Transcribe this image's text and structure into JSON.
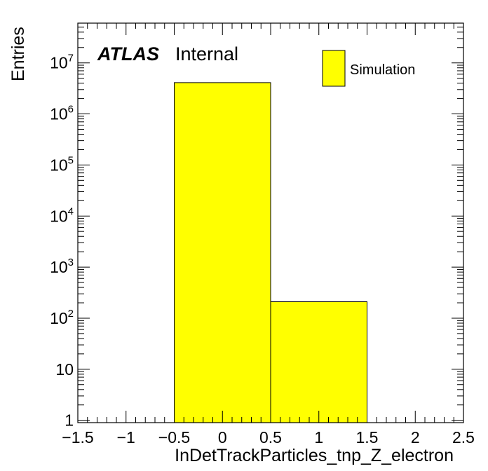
{
  "chart_data": {
    "type": "bar",
    "title": "",
    "xlabel": "InDetTrackParticles_tnp_Z_electron",
    "ylabel": "Entries",
    "xlim": [
      -1.5,
      2.5
    ],
    "ylim": [
      0.9,
      60000000
    ],
    "ylog": true,
    "x_ticks": [
      "−1.5",
      "−1",
      "−0.5",
      "0",
      "0.5",
      "1",
      "1.5",
      "2",
      "2.5"
    ],
    "y_ticks": [
      {
        "base": "1",
        "exp": ""
      },
      {
        "base": "10",
        "exp": ""
      },
      {
        "base": "10",
        "exp": "2"
      },
      {
        "base": "10",
        "exp": "3"
      },
      {
        "base": "10",
        "exp": "4"
      },
      {
        "base": "10",
        "exp": "5"
      },
      {
        "base": "10",
        "exp": "6"
      },
      {
        "base": "10",
        "exp": "7"
      }
    ],
    "bins": [
      {
        "low": -0.5,
        "high": 0.5,
        "value": 4100000
      },
      {
        "low": 0.5,
        "high": 1.5,
        "value": 210
      }
    ],
    "fill_color": "#ffff00",
    "legend": {
      "position": "top-right",
      "entries": [
        "Simulation"
      ]
    },
    "atlas_label": "ATLAS",
    "atlas_status": "Internal"
  }
}
